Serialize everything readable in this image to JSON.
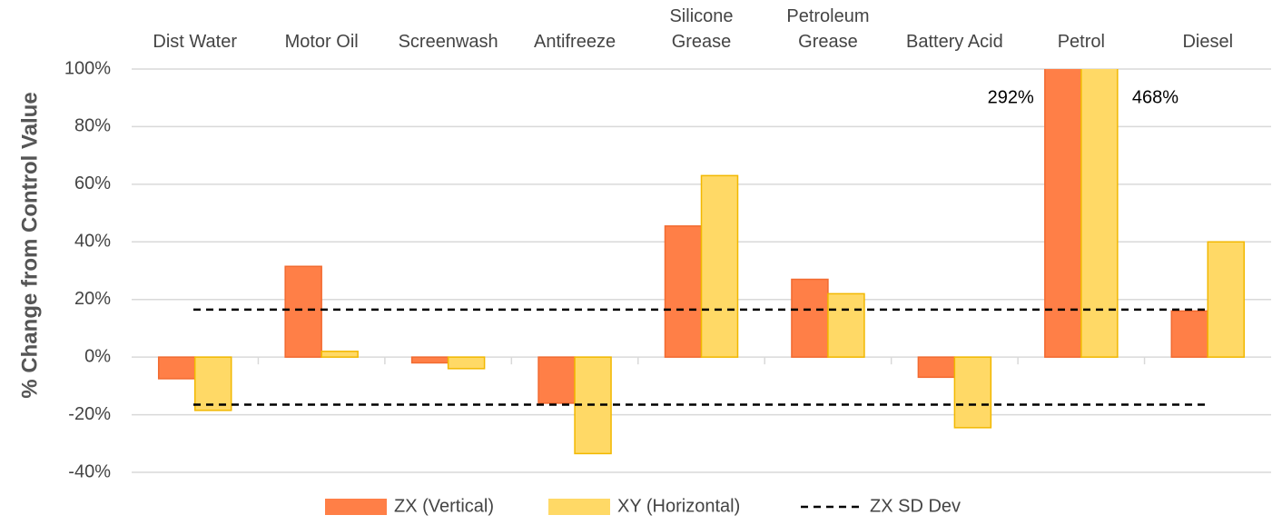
{
  "chart_data": {
    "type": "bar",
    "y_label": "% Change from Control Value",
    "categories": [
      "Dist Water",
      "Motor Oil",
      "Screenwash",
      "Antifreeze",
      "Silicone\nGrease",
      "Petroleum\nGrease",
      "Battery Acid",
      "Petrol",
      "Diesel"
    ],
    "series": [
      {
        "name": "ZX (Vertical)",
        "color": "#ff7f47",
        "values": [
          -7.5,
          31.5,
          -2,
          -16,
          45.5,
          27,
          -7,
          292,
          16
        ],
        "value_labels": [
          null,
          null,
          null,
          null,
          null,
          null,
          null,
          "292%",
          null
        ]
      },
      {
        "name": "XY (Horizontal)",
        "color": "#ffd966",
        "values": [
          -18.5,
          2,
          -4,
          -33.5,
          63,
          22,
          -24.5,
          468,
          40
        ],
        "value_labels": [
          null,
          null,
          null,
          null,
          null,
          null,
          null,
          "468%",
          null
        ]
      }
    ],
    "reference_line": {
      "name": "ZX SD Dev",
      "color": "#000000",
      "values": [
        16.5,
        -16.5
      ]
    },
    "ylim": [
      -40,
      100
    ],
    "yticks": [
      {
        "value": -40,
        "label": "-40%"
      },
      {
        "value": -20,
        "label": "-20%"
      },
      {
        "value": 0,
        "label": "0%"
      },
      {
        "value": 20,
        "label": "20%"
      },
      {
        "value": 40,
        "label": "40%"
      },
      {
        "value": 60,
        "label": "60%"
      },
      {
        "value": 80,
        "label": "80%"
      },
      {
        "value": 100,
        "label": "100%"
      }
    ],
    "grid": true,
    "legend": "bottom"
  }
}
